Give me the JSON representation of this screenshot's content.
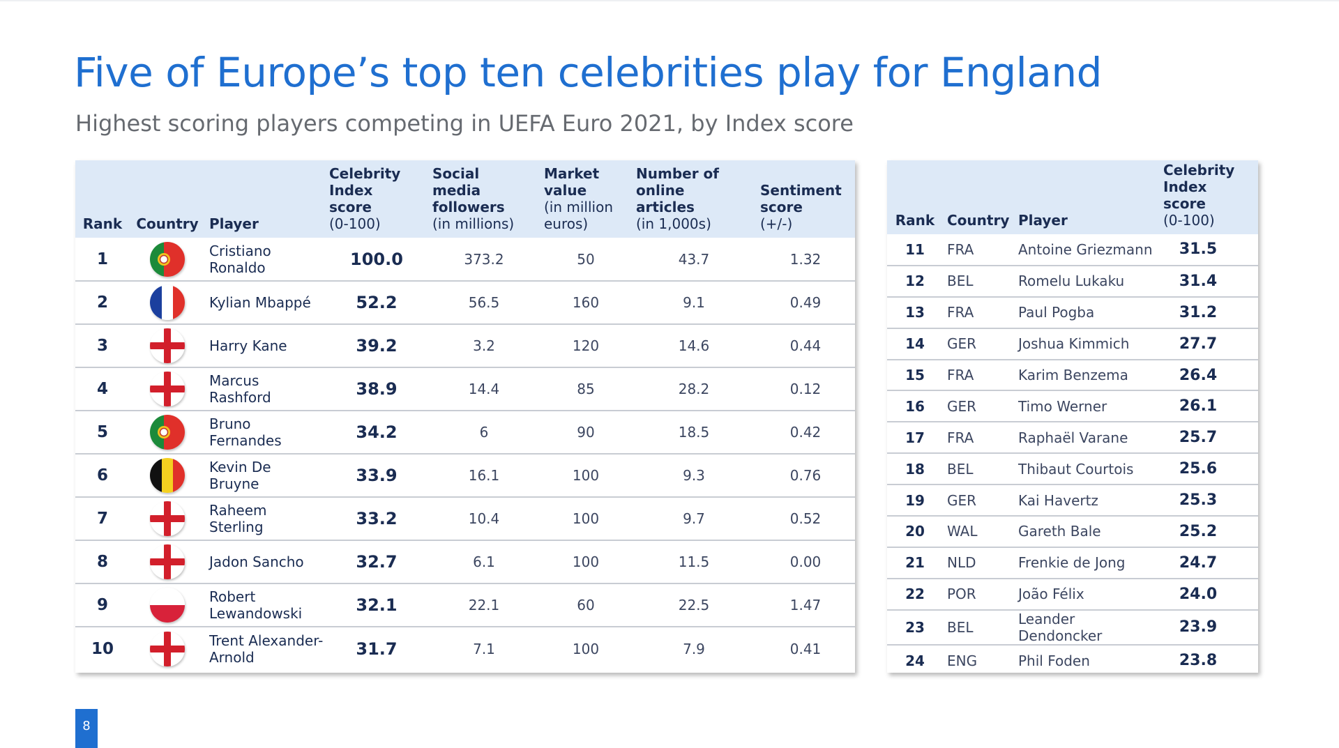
{
  "title": "Five of Europe’s top ten celebrities play for England",
  "subtitle": "Highest scoring players competing in UEFA Euro 2021, by Index score",
  "page_number": "8",
  "colors": {
    "accent": "#1f6fd0",
    "header_bg": "#dde9f7",
    "text": "#1a2c52"
  },
  "main_table": {
    "headers": {
      "rank": "Rank",
      "country": "Country",
      "player": "Player",
      "score_bold": "Celebrity Index score",
      "score_sub": "(0-100)",
      "social_bold": "Social media followers",
      "social_sub": "(in millions)",
      "market_bold": "Market value",
      "market_sub": "(in million euros)",
      "articles_bold": "Number of online articles",
      "articles_sub": "(in 1,000s)",
      "sentiment_bold": "Sentiment score",
      "sentiment_sub": "(+/-)"
    },
    "rows": [
      {
        "rank": "1",
        "flag": "portugal-flag-icon",
        "player": "Cristiano Ronaldo",
        "score": "100.0",
        "social": "373.2",
        "market": "50",
        "articles": "43.7",
        "sentiment": "1.32"
      },
      {
        "rank": "2",
        "flag": "france-flag-icon",
        "player": "Kylian Mbappé",
        "score": "52.2",
        "social": "56.5",
        "market": "160",
        "articles": "9.1",
        "sentiment": "0.49"
      },
      {
        "rank": "3",
        "flag": "england-flag-icon",
        "player": "Harry Kane",
        "score": "39.2",
        "social": "3.2",
        "market": "120",
        "articles": "14.6",
        "sentiment": "0.44"
      },
      {
        "rank": "4",
        "flag": "england-flag-icon",
        "player": "Marcus Rashford",
        "score": "38.9",
        "social": "14.4",
        "market": "85",
        "articles": "28.2",
        "sentiment": "0.12"
      },
      {
        "rank": "5",
        "flag": "portugal-flag-icon",
        "player": "Bruno Fernandes",
        "score": "34.2",
        "social": "6",
        "market": "90",
        "articles": "18.5",
        "sentiment": "0.42"
      },
      {
        "rank": "6",
        "flag": "belgium-flag-icon",
        "player": "Kevin De Bruyne",
        "score": "33.9",
        "social": "16.1",
        "market": "100",
        "articles": "9.3",
        "sentiment": "0.76"
      },
      {
        "rank": "7",
        "flag": "england-flag-icon",
        "player": "Raheem Sterling",
        "score": "33.2",
        "social": "10.4",
        "market": "100",
        "articles": "9.7",
        "sentiment": "0.52"
      },
      {
        "rank": "8",
        "flag": "england-flag-icon",
        "player": "Jadon Sancho",
        "score": "32.7",
        "social": "6.1",
        "market": "100",
        "articles": "11.5",
        "sentiment": "0.00"
      },
      {
        "rank": "9",
        "flag": "poland-flag-icon",
        "player": "Robert Lewandowski",
        "score": "32.1",
        "social": "22.1",
        "market": "60",
        "articles": "22.5",
        "sentiment": "1.47"
      },
      {
        "rank": "10",
        "flag": "england-flag-icon",
        "player": "Trent Alexander-Arnold",
        "score": "31.7",
        "social": "7.1",
        "market": "100",
        "articles": "7.9",
        "sentiment": "0.41"
      }
    ]
  },
  "side_table": {
    "headers": {
      "rank": "Rank",
      "country": "Country",
      "player": "Player",
      "score_bold": "Celebrity Index score",
      "score_sub": "(0-100)"
    },
    "rows": [
      {
        "rank": "11",
        "country": "FRA",
        "player": "Antoine Griezmann",
        "score": "31.5"
      },
      {
        "rank": "12",
        "country": "BEL",
        "player": "Romelu Lukaku",
        "score": "31.4"
      },
      {
        "rank": "13",
        "country": "FRA",
        "player": "Paul Pogba",
        "score": "31.2"
      },
      {
        "rank": "14",
        "country": "GER",
        "player": "Joshua Kimmich",
        "score": "27.7"
      },
      {
        "rank": "15",
        "country": "FRA",
        "player": "Karim Benzema",
        "score": "26.4"
      },
      {
        "rank": "16",
        "country": "GER",
        "player": "Timo Werner",
        "score": "26.1"
      },
      {
        "rank": "17",
        "country": "FRA",
        "player": "Raphaël Varane",
        "score": "25.7"
      },
      {
        "rank": "18",
        "country": "BEL",
        "player": "Thibaut Courtois",
        "score": "25.6"
      },
      {
        "rank": "19",
        "country": "GER",
        "player": "Kai Havertz",
        "score": "25.3"
      },
      {
        "rank": "20",
        "country": "WAL",
        "player": "Gareth Bale",
        "score": "25.2"
      },
      {
        "rank": "21",
        "country": "NLD",
        "player": "Frenkie de Jong",
        "score": "24.7"
      },
      {
        "rank": "22",
        "country": "POR",
        "player": "João Félix",
        "score": "24.0"
      },
      {
        "rank": "23",
        "country": "BEL",
        "player": "Leander Dendoncker",
        "score": "23.9"
      },
      {
        "rank": "24",
        "country": "ENG",
        "player": "Phil Foden",
        "score": "23.8"
      }
    ]
  }
}
